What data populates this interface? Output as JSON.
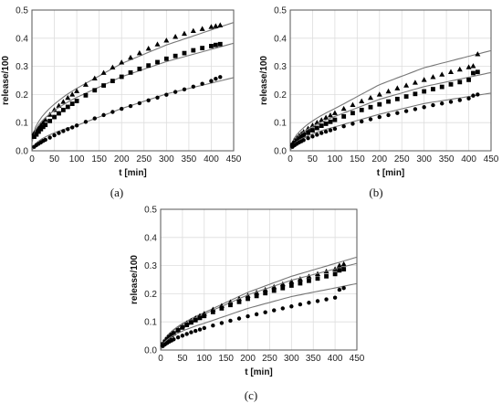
{
  "chart_data": [
    {
      "type": "scatter",
      "panel_label": "(a)",
      "xlabel": "t [min]",
      "ylabel": "release/100",
      "xlim": [
        0,
        450
      ],
      "ylim": [
        0,
        0.5
      ],
      "xticks": [
        "0",
        "50",
        "100",
        "150",
        "200",
        "250",
        "300",
        "350",
        "400",
        "450"
      ],
      "yticks": [
        "0.0",
        "0.1",
        "0.2",
        "0.3",
        "0.4",
        "0.5"
      ],
      "grid": true,
      "series": [
        {
          "marker": "triangle",
          "x": [
            5,
            10,
            15,
            20,
            25,
            30,
            40,
            50,
            60,
            70,
            80,
            90,
            100,
            120,
            140,
            160,
            180,
            200,
            220,
            240,
            260,
            280,
            300,
            320,
            340,
            360,
            380,
            400,
            410,
            420
          ],
          "y": [
            0.063,
            0.07,
            0.08,
            0.09,
            0.1,
            0.11,
            0.128,
            0.145,
            0.16,
            0.174,
            0.188,
            0.2,
            0.212,
            0.235,
            0.257,
            0.277,
            0.296,
            0.314,
            0.331,
            0.347,
            0.363,
            0.378,
            0.392,
            0.405,
            0.416,
            0.426,
            0.433,
            0.44,
            0.443,
            0.446
          ],
          "fit_x": [
            0,
            100,
            200,
            300,
            450
          ],
          "fit_y": [
            0.03,
            0.222,
            0.31,
            0.376,
            0.456
          ]
        },
        {
          "marker": "square",
          "x": [
            5,
            10,
            15,
            20,
            25,
            30,
            40,
            50,
            60,
            70,
            80,
            90,
            100,
            120,
            140,
            160,
            180,
            200,
            220,
            240,
            260,
            280,
            300,
            320,
            340,
            360,
            380,
            400,
            410,
            420
          ],
          "y": [
            0.05,
            0.058,
            0.068,
            0.077,
            0.085,
            0.092,
            0.106,
            0.12,
            0.133,
            0.145,
            0.156,
            0.167,
            0.177,
            0.197,
            0.215,
            0.232,
            0.248,
            0.263,
            0.278,
            0.291,
            0.303,
            0.315,
            0.327,
            0.337,
            0.347,
            0.357,
            0.365,
            0.372,
            0.376,
            0.379
          ],
          "fit_x": [
            0,
            100,
            200,
            300,
            450
          ],
          "fit_y": [
            0.03,
            0.19,
            0.263,
            0.317,
            0.382
          ]
        },
        {
          "marker": "circle",
          "x": [
            5,
            10,
            15,
            20,
            25,
            30,
            40,
            50,
            60,
            70,
            80,
            90,
            100,
            120,
            140,
            160,
            180,
            200,
            220,
            240,
            260,
            280,
            300,
            320,
            340,
            360,
            380,
            400,
            410,
            420
          ],
          "y": [
            0.014,
            0.02,
            0.025,
            0.03,
            0.035,
            0.039,
            0.047,
            0.055,
            0.063,
            0.07,
            0.077,
            0.083,
            0.09,
            0.103,
            0.115,
            0.127,
            0.138,
            0.149,
            0.159,
            0.169,
            0.179,
            0.189,
            0.199,
            0.209,
            0.218,
            0.228,
            0.238,
            0.248,
            0.256,
            0.262
          ],
          "fit_x": [
            0,
            100,
            200,
            300,
            450
          ],
          "fit_y": [
            0.0,
            0.09,
            0.15,
            0.202,
            0.26
          ]
        }
      ]
    },
    {
      "type": "scatter",
      "panel_label": "(b)",
      "xlabel": "t [min]",
      "ylabel": "release/100",
      "xlim": [
        0,
        450
      ],
      "ylim": [
        0,
        0.5
      ],
      "xticks": [
        "0",
        "50",
        "100",
        "150",
        "200",
        "250",
        "300",
        "350",
        "400",
        "450"
      ],
      "yticks": [
        "0.0",
        "0.1",
        "0.2",
        "0.3",
        "0.4",
        "0.5"
      ],
      "grid": true,
      "series": [
        {
          "marker": "triangle",
          "x": [
            5,
            10,
            15,
            20,
            25,
            30,
            40,
            50,
            60,
            70,
            80,
            90,
            100,
            120,
            140,
            160,
            180,
            200,
            220,
            240,
            260,
            280,
            300,
            320,
            340,
            360,
            380,
            400,
            410,
            420
          ],
          "y": [
            0.025,
            0.035,
            0.045,
            0.053,
            0.06,
            0.067,
            0.079,
            0.09,
            0.1,
            0.109,
            0.118,
            0.126,
            0.134,
            0.149,
            0.163,
            0.176,
            0.188,
            0.2,
            0.211,
            0.222,
            0.232,
            0.242,
            0.252,
            0.262,
            0.271,
            0.28,
            0.289,
            0.297,
            0.301,
            0.343
          ],
          "fit_x": [
            0,
            100,
            200,
            300,
            450
          ],
          "fit_y": [
            0.0,
            0.15,
            0.235,
            0.295,
            0.356
          ]
        },
        {
          "marker": "square",
          "x": [
            5,
            10,
            15,
            20,
            25,
            30,
            40,
            50,
            60,
            70,
            80,
            90,
            100,
            120,
            140,
            160,
            180,
            200,
            220,
            240,
            260,
            280,
            300,
            320,
            340,
            360,
            380,
            400,
            410,
            420
          ],
          "y": [
            0.02,
            0.028,
            0.036,
            0.043,
            0.049,
            0.054,
            0.064,
            0.073,
            0.081,
            0.089,
            0.096,
            0.103,
            0.11,
            0.122,
            0.134,
            0.145,
            0.155,
            0.165,
            0.175,
            0.184,
            0.193,
            0.202,
            0.211,
            0.219,
            0.227,
            0.236,
            0.244,
            0.252,
            0.276,
            0.28
          ],
          "fit_x": [
            0,
            100,
            200,
            300,
            450
          ],
          "fit_y": [
            0.0,
            0.122,
            0.183,
            0.228,
            0.278
          ]
        },
        {
          "marker": "circle",
          "x": [
            5,
            10,
            15,
            20,
            25,
            30,
            40,
            50,
            60,
            70,
            80,
            90,
            100,
            120,
            140,
            160,
            180,
            200,
            220,
            240,
            260,
            280,
            300,
            320,
            340,
            360,
            380,
            400,
            410,
            420
          ],
          "y": [
            0.014,
            0.02,
            0.025,
            0.03,
            0.034,
            0.038,
            0.045,
            0.051,
            0.057,
            0.063,
            0.068,
            0.073,
            0.078,
            0.087,
            0.096,
            0.104,
            0.112,
            0.12,
            0.127,
            0.134,
            0.141,
            0.148,
            0.155,
            0.162,
            0.168,
            0.174,
            0.18,
            0.186,
            0.196,
            0.2
          ],
          "fit_x": [
            0,
            100,
            200,
            300,
            450
          ],
          "fit_y": [
            0.0,
            0.085,
            0.13,
            0.168,
            0.205
          ]
        }
      ]
    },
    {
      "type": "scatter",
      "panel_label": "(c)",
      "xlabel": "t [min]",
      "ylabel": "release/100",
      "xlim": [
        0,
        450
      ],
      "ylim": [
        0,
        0.5
      ],
      "xticks": [
        "0",
        "50",
        "100",
        "150",
        "200",
        "250",
        "300",
        "350",
        "400",
        "450"
      ],
      "yticks": [
        "0.0",
        "0.1",
        "0.2",
        "0.3",
        "0.4",
        "0.5"
      ],
      "grid": true,
      "series": [
        {
          "marker": "triangle",
          "x": [
            5,
            10,
            15,
            20,
            25,
            30,
            40,
            50,
            60,
            70,
            80,
            90,
            100,
            120,
            140,
            160,
            180,
            200,
            220,
            240,
            260,
            280,
            300,
            320,
            340,
            360,
            380,
            400,
            410,
            420
          ],
          "y": [
            0.02,
            0.03,
            0.04,
            0.048,
            0.055,
            0.062,
            0.074,
            0.085,
            0.095,
            0.104,
            0.113,
            0.121,
            0.129,
            0.144,
            0.157,
            0.17,
            0.182,
            0.193,
            0.204,
            0.214,
            0.224,
            0.234,
            0.243,
            0.252,
            0.261,
            0.27,
            0.279,
            0.287,
            0.3,
            0.305
          ],
          "fit_x": [
            0,
            100,
            200,
            300,
            450
          ],
          "fit_y": [
            0.0,
            0.133,
            0.205,
            0.262,
            0.33
          ]
        },
        {
          "marker": "square",
          "x": [
            5,
            10,
            15,
            20,
            25,
            30,
            40,
            50,
            60,
            70,
            80,
            90,
            100,
            120,
            140,
            160,
            180,
            200,
            220,
            240,
            260,
            280,
            300,
            320,
            340,
            360,
            380,
            400,
            410,
            420
          ],
          "y": [
            0.02,
            0.029,
            0.038,
            0.046,
            0.053,
            0.059,
            0.07,
            0.08,
            0.089,
            0.098,
            0.106,
            0.114,
            0.121,
            0.135,
            0.148,
            0.16,
            0.171,
            0.182,
            0.192,
            0.202,
            0.211,
            0.22,
            0.229,
            0.237,
            0.246,
            0.254,
            0.262,
            0.27,
            0.283,
            0.287
          ],
          "fit_x": [
            0,
            100,
            200,
            300,
            450
          ],
          "fit_y": [
            0.0,
            0.128,
            0.196,
            0.248,
            0.308
          ]
        },
        {
          "marker": "circle",
          "x": [
            5,
            10,
            15,
            20,
            25,
            30,
            40,
            50,
            60,
            70,
            80,
            90,
            100,
            120,
            140,
            160,
            180,
            200,
            220,
            240,
            260,
            280,
            300,
            320,
            340,
            360,
            380,
            400,
            410,
            420
          ],
          "y": [
            0.014,
            0.02,
            0.025,
            0.03,
            0.034,
            0.038,
            0.045,
            0.051,
            0.057,
            0.063,
            0.068,
            0.073,
            0.078,
            0.087,
            0.096,
            0.104,
            0.112,
            0.12,
            0.127,
            0.134,
            0.141,
            0.148,
            0.155,
            0.162,
            0.168,
            0.174,
            0.18,
            0.186,
            0.214,
            0.22
          ],
          "fit_x": [
            0,
            100,
            200,
            300,
            450
          ],
          "fit_y": [
            0.0,
            0.095,
            0.148,
            0.19,
            0.236
          ]
        }
      ]
    }
  ]
}
